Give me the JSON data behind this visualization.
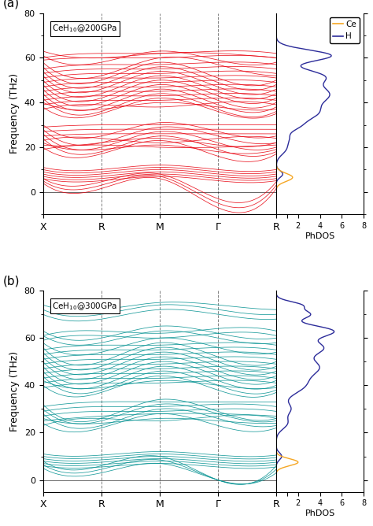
{
  "panel_a": {
    "label": "(a)",
    "color": "#e8000d",
    "ylim": [
      -10,
      80
    ],
    "yticks": [
      0,
      20,
      40,
      60,
      80
    ],
    "xlabels": [
      "X",
      "R",
      "M",
      "Γ",
      "R"
    ],
    "dos_Ce_color": "#f5a623",
    "dos_H_color": "#2c2c9a"
  },
  "panel_b": {
    "label": "(b)",
    "color": "#009090",
    "ylim": [
      -5,
      80
    ],
    "yticks": [
      0,
      20,
      40,
      60,
      80
    ],
    "xlabels": [
      "X",
      "R",
      "M",
      "Γ",
      "R"
    ],
    "dos_Ce_color": "#f5a623",
    "dos_H_color": "#2c2c9a"
  }
}
